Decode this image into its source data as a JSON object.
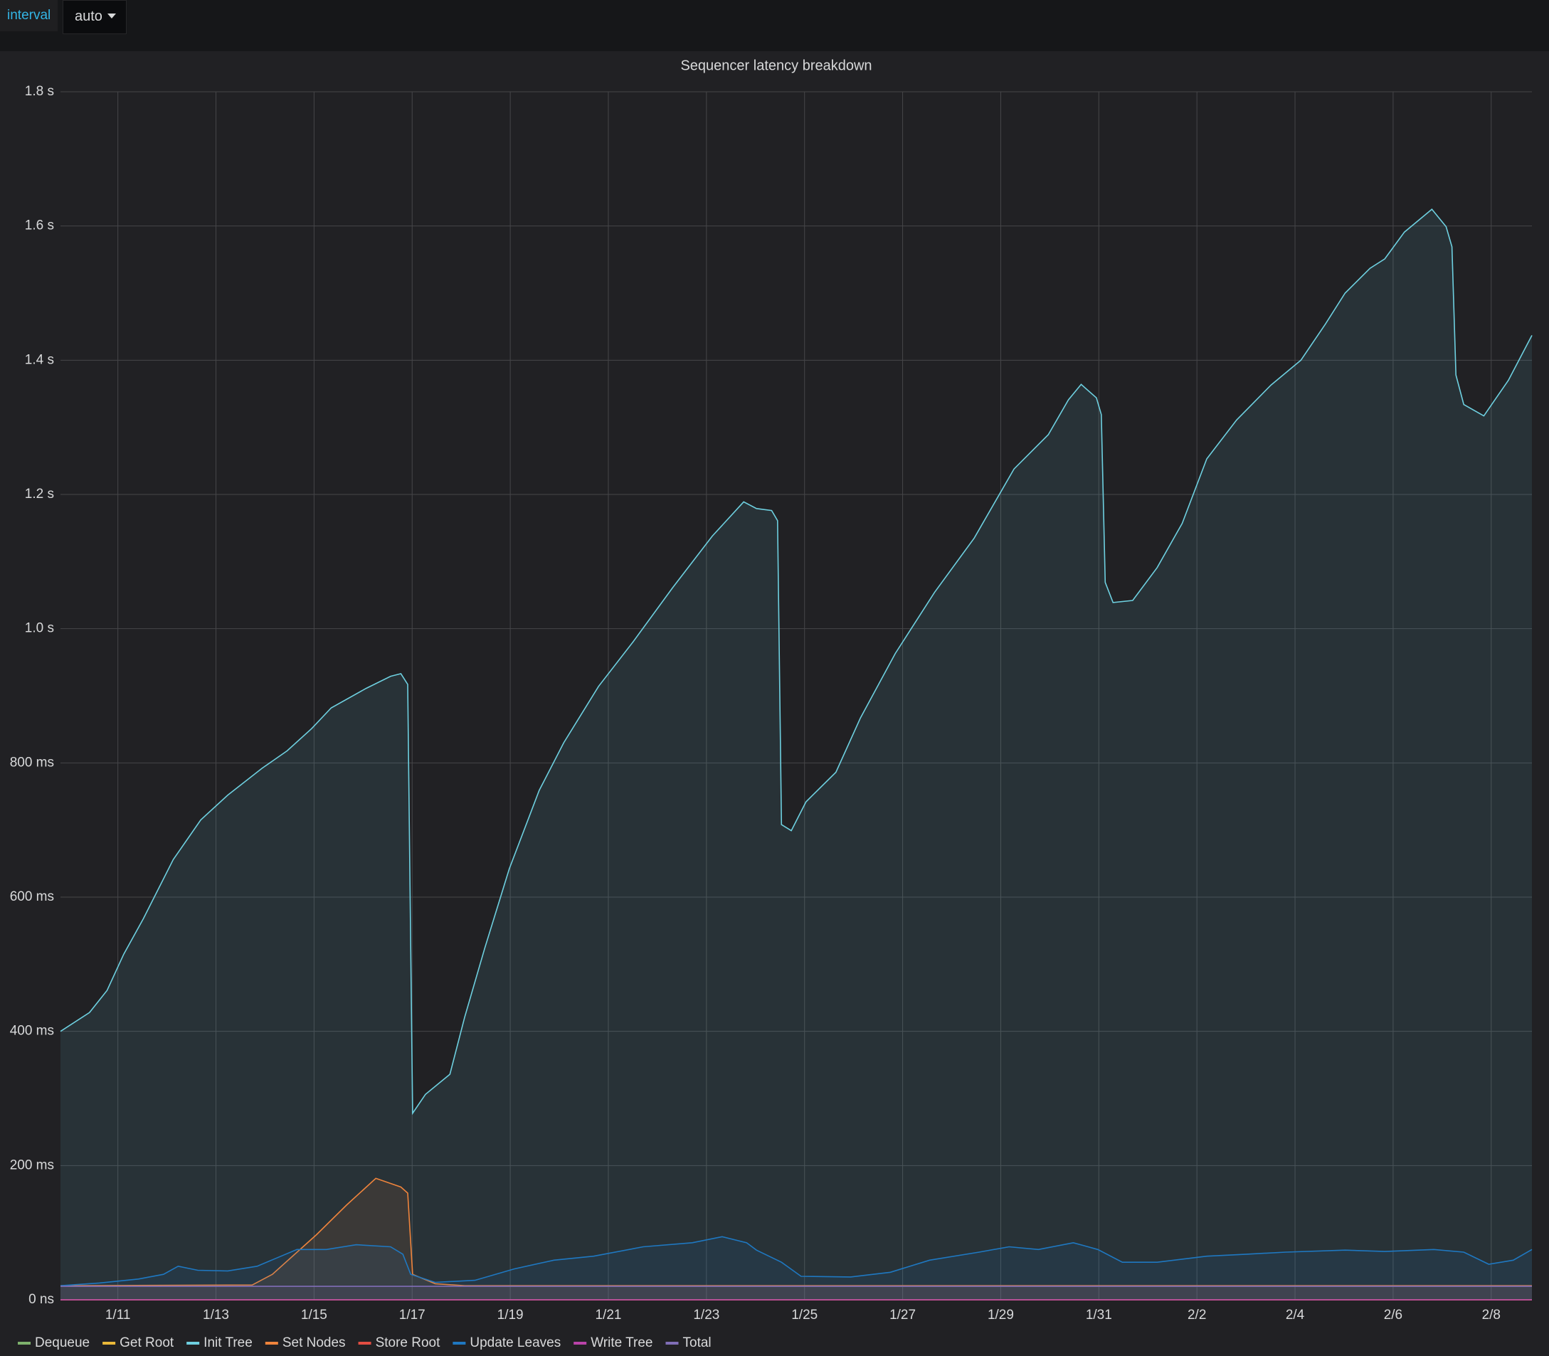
{
  "toolbar": {
    "label": "interval",
    "value": "auto"
  },
  "chart_data": {
    "type": "line",
    "title": "Sequencer latency breakdown",
    "fill": true,
    "grid": true,
    "legend": "bottom-left",
    "xlim": [
      9.83,
      39.83
    ],
    "xticks": [
      {
        "value": 11,
        "label": "1/11"
      },
      {
        "value": 13,
        "label": "1/13"
      },
      {
        "value": 15,
        "label": "1/15"
      },
      {
        "value": 17,
        "label": "1/17"
      },
      {
        "value": 19,
        "label": "1/19"
      },
      {
        "value": 21,
        "label": "1/21"
      },
      {
        "value": 23,
        "label": "1/23"
      },
      {
        "value": 25,
        "label": "1/25"
      },
      {
        "value": 27,
        "label": "1/27"
      },
      {
        "value": 29,
        "label": "1/29"
      },
      {
        "value": 31,
        "label": "1/31"
      },
      {
        "value": 33,
        "label": "2/2"
      },
      {
        "value": 35,
        "label": "2/4"
      },
      {
        "value": 37,
        "label": "2/6"
      },
      {
        "value": 39,
        "label": "2/8"
      }
    ],
    "ylim": [
      0,
      1800
    ],
    "yticks": [
      {
        "value": 0,
        "label": "0 ns"
      },
      {
        "value": 200,
        "label": "200 ms"
      },
      {
        "value": 400,
        "label": "400 ms"
      },
      {
        "value": 600,
        "label": "600 ms"
      },
      {
        "value": 800,
        "label": "800 ms"
      },
      {
        "value": 1000,
        "label": "1.0 s"
      },
      {
        "value": 1200,
        "label": "1.2 s"
      },
      {
        "value": 1400,
        "label": "1.4 s"
      },
      {
        "value": 1600,
        "label": "1.6 s"
      },
      {
        "value": 1800,
        "label": "1.8 s"
      }
    ],
    "series": [
      {
        "name": "Dequeue",
        "color": "#7eb26d",
        "x": [
          9.83,
          39.83
        ],
        "values": [
          0,
          0
        ]
      },
      {
        "name": "Get Root",
        "color": "#eab839",
        "x": [
          9.83,
          39.83
        ],
        "values": [
          0,
          0
        ]
      },
      {
        "name": "Init Tree",
        "color": "#6ed0e0",
        "x": [
          9.83,
          10.42,
          10.78,
          11.12,
          11.52,
          12.13,
          12.69,
          13.24,
          13.94,
          14.45,
          14.95,
          15.35,
          16.06,
          16.56,
          16.77,
          16.91,
          17.01,
          17.27,
          17.77,
          18.07,
          18.48,
          18.98,
          19.59,
          20.09,
          20.8,
          21.5,
          22.31,
          23.12,
          23.76,
          24.02,
          24.33,
          24.45,
          24.53,
          24.73,
          25.03,
          25.64,
          26.14,
          26.85,
          27.65,
          28.46,
          29.27,
          29.97,
          30.38,
          30.64,
          30.95,
          31.05,
          31.13,
          31.29,
          31.69,
          32.19,
          32.7,
          33.2,
          33.81,
          34.51,
          35.12,
          35.62,
          36.02,
          36.53,
          36.83,
          37.23,
          37.79,
          38.08,
          38.2,
          38.28,
          38.44,
          38.85,
          39.35,
          39.83
        ],
        "values": [
          400,
          428,
          461,
          515,
          568,
          656,
          715,
          752,
          792,
          818,
          851,
          882,
          911,
          929,
          933,
          917,
          278,
          306,
          336,
          421,
          524,
          642,
          759,
          830,
          914,
          980,
          1061,
          1138,
          1189,
          1179,
          1176,
          1161,
          708,
          699,
          742,
          786,
          867,
          963,
          1054,
          1135,
          1238,
          1289,
          1341,
          1364,
          1344,
          1319,
          1069,
          1039,
          1042,
          1091,
          1157,
          1253,
          1311,
          1363,
          1400,
          1454,
          1500,
          1537,
          1551,
          1591,
          1625,
          1599,
          1569,
          1378,
          1334,
          1317,
          1370,
          1437
        ]
      },
      {
        "name": "Set Nodes",
        "color": "#ef843c",
        "x": [
          9.83,
          13.74,
          14.15,
          15.05,
          15.66,
          16.26,
          16.77,
          16.91,
          17.01,
          17.47,
          18.07,
          39.83
        ],
        "values": [
          21,
          22,
          38,
          97,
          141,
          181,
          168,
          159,
          38,
          24,
          21,
          21
        ]
      },
      {
        "name": "Store Root",
        "color": "#e24d42",
        "x": [
          9.83,
          39.83
        ],
        "values": [
          0,
          0
        ]
      },
      {
        "name": "Update Leaves",
        "color": "#1f78c1",
        "x": [
          9.83,
          10.62,
          11.42,
          11.93,
          12.23,
          12.63,
          13.24,
          13.84,
          14.65,
          15.25,
          15.86,
          16.56,
          16.81,
          16.97,
          17.47,
          18.28,
          19.08,
          19.89,
          20.7,
          21.71,
          22.71,
          23.32,
          23.82,
          24.02,
          24.53,
          24.93,
          25.94,
          26.75,
          27.55,
          28.56,
          29.17,
          29.77,
          30.48,
          30.98,
          31.48,
          32.19,
          33.2,
          34.01,
          34.81,
          36.02,
          36.83,
          37.83,
          38.44,
          38.95,
          39.45,
          39.83
        ],
        "values": [
          21,
          25,
          31,
          38,
          50,
          44,
          43,
          50,
          75,
          75,
          82,
          79,
          68,
          38,
          26,
          29,
          46,
          59,
          65,
          79,
          85,
          94,
          85,
          74,
          56,
          35,
          34,
          41,
          59,
          71,
          79,
          75,
          85,
          75,
          56,
          56,
          65,
          68,
          71,
          74,
          72,
          75,
          71,
          53,
          59,
          75
        ]
      },
      {
        "name": "Write Tree",
        "color": "#ba43a9",
        "x": [
          9.83,
          39.83
        ],
        "values": [
          0,
          0
        ]
      },
      {
        "name": "Total",
        "color": "#806eb7",
        "x": [
          9.83,
          39.83
        ],
        "values": [
          20,
          20
        ]
      }
    ]
  }
}
